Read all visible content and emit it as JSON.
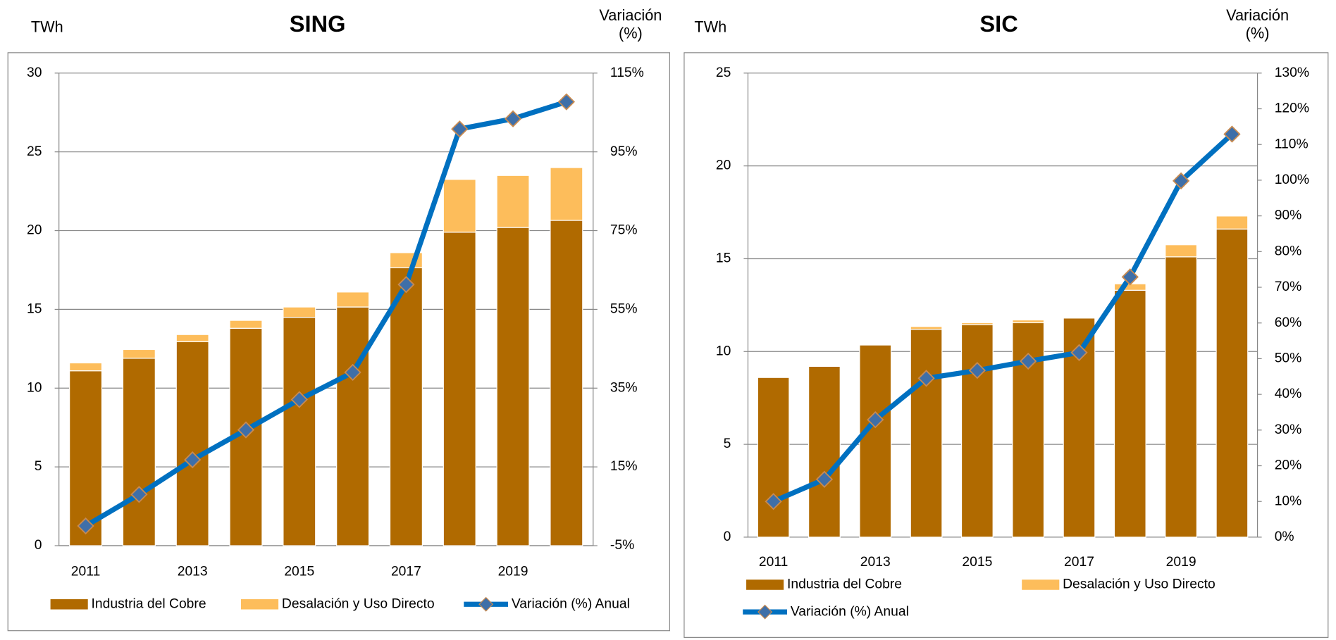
{
  "chart_data": [
    {
      "type": "bar",
      "title": "SING",
      "y_label": "TWh",
      "y2_label": "Variación (%)",
      "categories": [
        "2011",
        null,
        "2013",
        null,
        "2015",
        null,
        "2017",
        null,
        "2019",
        null
      ],
      "series": [
        {
          "name": "Industria del Cobre",
          "color": "#b06a00",
          "values": [
            11.1,
            11.9,
            12.95,
            13.8,
            14.5,
            15.15,
            17.65,
            19.9,
            20.2,
            20.65
          ]
        },
        {
          "name": "Desalación y Uso Directo",
          "color": "#fdbd5b",
          "values": [
            0.5,
            0.55,
            0.45,
            0.5,
            0.65,
            0.95,
            0.95,
            3.35,
            3.3,
            3.35
          ]
        },
        {
          "name": "Variación (%) Anual",
          "color": "#0070c0",
          "marker_color": "#3f6fa8",
          "axis": "y2",
          "values": [
            0,
            8,
            16.8,
            24.4,
            32.1,
            39,
            61.3,
            100.8,
            103.4,
            107.7
          ]
        }
      ],
      "stacked": true,
      "grid": true,
      "ylim": [
        0,
        30
      ],
      "yticks": [
        0,
        5,
        10,
        15,
        20,
        25,
        30
      ],
      "y2lim": [
        -5,
        115
      ],
      "y2ticks": [
        {
          "value": -5,
          "label": "-5%"
        },
        {
          "value": 15,
          "label": "15%"
        },
        {
          "value": 35,
          "label": "35%"
        },
        {
          "value": 55,
          "label": "55%"
        },
        {
          "value": 75,
          "label": "75%"
        },
        {
          "value": 95,
          "label": "95%"
        },
        {
          "value": 115,
          "label": "115%"
        }
      ]
    },
    {
      "type": "bar",
      "title": "SIC",
      "y_label": "TWh",
      "y2_label": "Variación (%)",
      "categories": [
        "2011",
        null,
        "2013",
        null,
        "2015",
        null,
        "2017",
        null,
        "2019",
        null
      ],
      "series": [
        {
          "name": "Industria del Cobre",
          "color": "#b06a00",
          "values": [
            8.6,
            9.2,
            10.35,
            11.2,
            11.45,
            11.55,
            11.8,
            13.3,
            15.1,
            16.6
          ]
        },
        {
          "name": "Desalación y Uso Directo",
          "color": "#fdbd5b",
          "values": [
            0,
            0,
            0,
            0.15,
            0.1,
            0.15,
            0,
            0.35,
            0.65,
            0.7
          ]
        },
        {
          "name": "Variación (%) Anual",
          "color": "#0070c0",
          "marker_color": "#3f6fa8",
          "axis": "y2",
          "values": [
            10,
            16.2,
            32.9,
            44.5,
            46.7,
            49.3,
            51.7,
            72.9,
            99.8,
            112.9
          ]
        }
      ],
      "stacked": true,
      "grid": true,
      "ylim": [
        0,
        25
      ],
      "yticks": [
        0,
        5,
        10,
        15,
        20,
        25
      ],
      "y2lim": [
        0,
        130
      ],
      "y2ticks": [
        {
          "value": 0,
          "label": "0%"
        },
        {
          "value": 10,
          "label": "10%"
        },
        {
          "value": 20,
          "label": "20%"
        },
        {
          "value": 30,
          "label": "30%"
        },
        {
          "value": 40,
          "label": "40%"
        },
        {
          "value": 50,
          "label": "50%"
        },
        {
          "value": 60,
          "label": "60%"
        },
        {
          "value": 70,
          "label": "70%"
        },
        {
          "value": 80,
          "label": "80%"
        },
        {
          "value": 90,
          "label": "90%"
        },
        {
          "value": 100,
          "label": "100%"
        },
        {
          "value": 110,
          "label": "110%"
        },
        {
          "value": 120,
          "label": "120%"
        },
        {
          "value": 130,
          "label": "130%"
        }
      ]
    }
  ]
}
